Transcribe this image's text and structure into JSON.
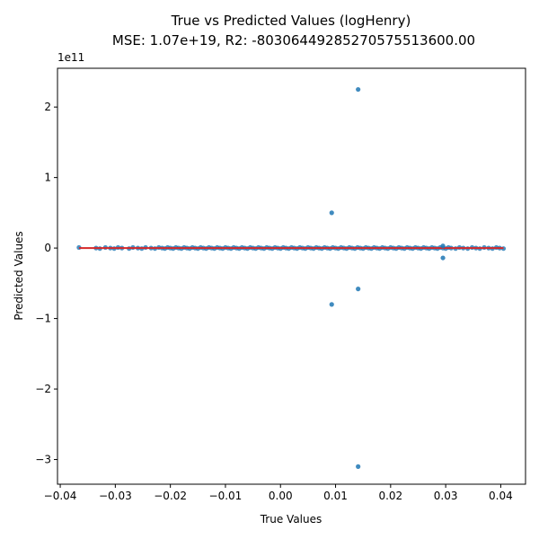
{
  "chart_data": {
    "type": "scatter",
    "title": "True vs Predicted Values (logHenry)",
    "subtitle": "MSE: 1.07e+19, R2: -80306449285270575513600.00",
    "xlabel": "True Values",
    "ylabel": "Predicted Values",
    "y_offset_label": "1e11",
    "xlim": [
      -0.0405,
      0.0445
    ],
    "ylim": [
      -3.35,
      2.55
    ],
    "y_multiplier": 100000000000,
    "grid": false,
    "x_ticks": [
      {
        "value": -0.04,
        "label": "−0.04"
      },
      {
        "value": -0.03,
        "label": "−0.03"
      },
      {
        "value": -0.02,
        "label": "−0.02"
      },
      {
        "value": -0.01,
        "label": "−0.01"
      },
      {
        "value": 0.0,
        "label": "0.00"
      },
      {
        "value": 0.01,
        "label": "0.01"
      },
      {
        "value": 0.02,
        "label": "0.02"
      },
      {
        "value": 0.03,
        "label": "0.03"
      },
      {
        "value": 0.04,
        "label": "0.04"
      }
    ],
    "y_ticks": [
      {
        "value": 2,
        "label": "2"
      },
      {
        "value": 1,
        "label": "1"
      },
      {
        "value": 0,
        "label": "0"
      },
      {
        "value": -1,
        "label": "−1"
      },
      {
        "value": -2,
        "label": "−2"
      },
      {
        "value": -3,
        "label": "−3"
      }
    ],
    "colors": {
      "points": "#1f77b4",
      "reference_line": "#d62728"
    },
    "reference_line": {
      "x": [
        -0.0366,
        0.0405
      ],
      "y": [
        -0.0366,
        0.0405
      ]
    },
    "outliers": [
      {
        "x": 0.0141,
        "y": 2.25
      },
      {
        "x": 0.0093,
        "y": 0.5
      },
      {
        "x": 0.0295,
        "y": 0.03
      },
      {
        "x": 0.0295,
        "y": -0.14
      },
      {
        "x": 0.0141,
        "y": -0.58
      },
      {
        "x": 0.0093,
        "y": -0.8
      },
      {
        "x": 0.0141,
        "y": -3.1
      }
    ],
    "zero_band_points": [
      -0.0366,
      -0.0335,
      -0.0328,
      -0.0318,
      -0.0309,
      -0.0302,
      -0.0295,
      -0.0288,
      -0.0275,
      -0.0268,
      -0.0259,
      -0.0252,
      -0.0245,
      -0.0235,
      -0.0228,
      -0.0221,
      -0.0215,
      -0.021,
      -0.0205,
      -0.02,
      -0.0195,
      -0.019,
      -0.0185,
      -0.018,
      -0.0175,
      -0.017,
      -0.0165,
      -0.016,
      -0.0155,
      -0.015,
      -0.0145,
      -0.014,
      -0.0135,
      -0.013,
      -0.0125,
      -0.012,
      -0.0115,
      -0.011,
      -0.0105,
      -0.01,
      -0.0095,
      -0.009,
      -0.0085,
      -0.008,
      -0.0075,
      -0.007,
      -0.0065,
      -0.006,
      -0.0055,
      -0.005,
      -0.0045,
      -0.004,
      -0.0035,
      -0.003,
      -0.0025,
      -0.002,
      -0.0015,
      -0.001,
      -0.0005,
      0.0,
      0.0005,
      0.001,
      0.0015,
      0.002,
      0.0025,
      0.003,
      0.0035,
      0.004,
      0.0045,
      0.005,
      0.0055,
      0.006,
      0.0065,
      0.007,
      0.0075,
      0.008,
      0.0085,
      0.009,
      0.0095,
      0.01,
      0.0105,
      0.011,
      0.0115,
      0.012,
      0.0125,
      0.013,
      0.0135,
      0.014,
      0.0145,
      0.015,
      0.0155,
      0.016,
      0.0165,
      0.017,
      0.0175,
      0.018,
      0.0185,
      0.019,
      0.0195,
      0.02,
      0.0205,
      0.021,
      0.0215,
      0.022,
      0.0225,
      0.023,
      0.0235,
      0.024,
      0.0245,
      0.025,
      0.0255,
      0.026,
      0.0265,
      0.027,
      0.0275,
      0.028,
      0.0285,
      0.029,
      0.0295,
      0.03,
      0.0305,
      0.031,
      0.0318,
      0.0325,
      0.0332,
      0.034,
      0.0348,
      0.0355,
      0.0362,
      0.037,
      0.0378,
      0.0385,
      0.0392,
      0.0398,
      0.0405
    ]
  }
}
